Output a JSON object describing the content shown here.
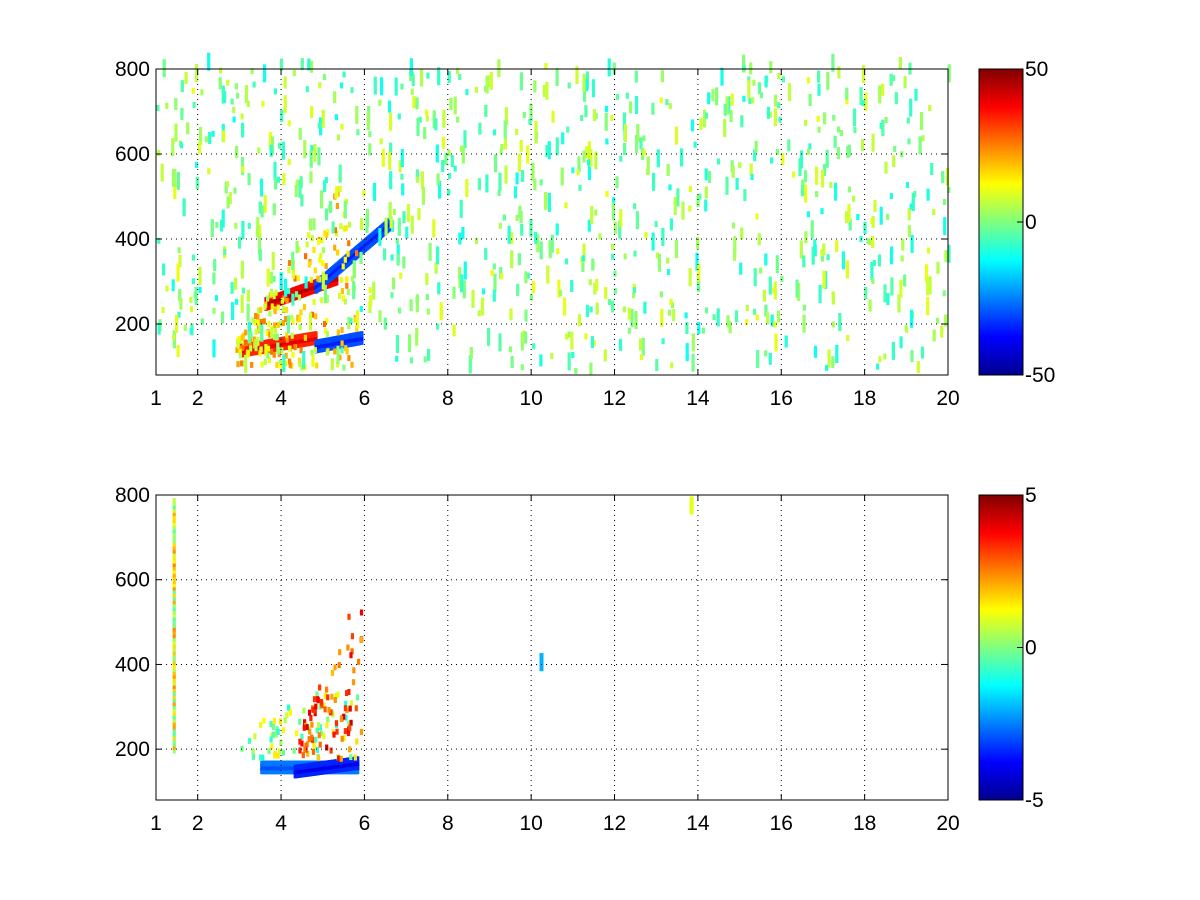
{
  "chart_data": [
    {
      "type": "heatmap",
      "title": "",
      "xlabel": "",
      "ylabel": "",
      "xlim": [
        1,
        20
      ],
      "ylim": [
        80,
        800
      ],
      "x_ticks": [
        1,
        2,
        4,
        6,
        8,
        10,
        12,
        14,
        16,
        18,
        20
      ],
      "x_tick_labels": [
        "1",
        "2",
        "4",
        "6",
        "8",
        "10",
        "12",
        "14",
        "16",
        "18",
        "20"
      ],
      "y_ticks": [
        200,
        400,
        600,
        800
      ],
      "y_tick_labels": [
        "200",
        "400",
        "600",
        "800"
      ],
      "grid": true,
      "grid_style": "dotted",
      "colormap": "jet",
      "colorbar": {
        "range": [
          -50,
          50
        ],
        "tick_labels": [
          "50",
          "0",
          "-50"
        ],
        "position": "right"
      },
      "features": [
        {
          "kind": "band",
          "x_range": [
            3.6,
            5.3
          ],
          "y_start": 240,
          "y_end": 300,
          "value": 45
        },
        {
          "kind": "band",
          "x_range": [
            3.0,
            4.8
          ],
          "y_start": 130,
          "y_end": 160,
          "value": 40
        },
        {
          "kind": "band",
          "x_range": [
            4.8,
            6.6
          ],
          "y_start": 280,
          "y_end": 430,
          "value": -35
        },
        {
          "kind": "band",
          "x_range": [
            4.8,
            5.9
          ],
          "y_start": 140,
          "y_end": 160,
          "value": -35
        },
        {
          "kind": "patch",
          "x_range": [
            2.9,
            5.8
          ],
          "y_range": [
            90,
            520
          ],
          "value": 15
        },
        {
          "kind": "noise",
          "x_range": [
            1.0,
            20.0
          ],
          "y_range": [
            80,
            800
          ],
          "value": 2
        }
      ]
    },
    {
      "type": "heatmap",
      "title": "",
      "xlabel": "",
      "ylabel": "",
      "xlim": [
        1,
        20
      ],
      "ylim": [
        80,
        800
      ],
      "x_ticks": [
        1,
        2,
        4,
        6,
        8,
        10,
        12,
        14,
        16,
        18,
        20
      ],
      "x_tick_labels": [
        "1",
        "2",
        "4",
        "6",
        "8",
        "10",
        "12",
        "14",
        "16",
        "18",
        "20"
      ],
      "y_ticks": [
        200,
        400,
        600,
        800
      ],
      "y_tick_labels": [
        "200",
        "400",
        "600",
        "800"
      ],
      "grid": true,
      "grid_style": "dotted",
      "colormap": "jet",
      "colorbar": {
        "range": [
          -5,
          5
        ],
        "tick_labels": [
          "5",
          "0",
          "-5"
        ],
        "position": "right"
      },
      "features": [
        {
          "kind": "band",
          "x_range": [
            3.5,
            5.8
          ],
          "y_start": 150,
          "y_end": 150,
          "value": -3
        },
        {
          "kind": "band",
          "x_range": [
            4.3,
            5.8
          ],
          "y_start": 140,
          "y_end": 160,
          "value": -4
        },
        {
          "kind": "patch",
          "x_range": [
            3.0,
            5.9
          ],
          "y_range": [
            170,
            330
          ],
          "value": 0.3
        },
        {
          "kind": "patch",
          "x_range": [
            4.4,
            5.9
          ],
          "y_range": [
            170,
            520
          ],
          "value": 3
        },
        {
          "kind": "line",
          "x": 1.4,
          "y_range": [
            190,
            780
          ],
          "value": 1
        },
        {
          "kind": "spot",
          "x": 10.2,
          "y": 400,
          "value": -2
        },
        {
          "kind": "spot",
          "x": 13.8,
          "y": 770,
          "value": 1
        }
      ]
    }
  ]
}
